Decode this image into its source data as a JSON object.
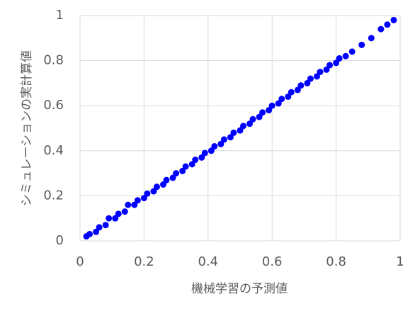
{
  "chart_data": {
    "type": "scatter",
    "xlabel": "機械学習の予測値",
    "ylabel": "シミュレーションの実計算値",
    "color": "#0000ff",
    "grid": true,
    "xlim": [
      0,
      1
    ],
    "ylim": [
      0,
      1
    ],
    "xticks": [
      0,
      0.2,
      0.4,
      0.6,
      0.8,
      1
    ],
    "yticks": [
      0,
      0.2,
      0.4,
      0.6,
      0.8,
      1
    ],
    "x": [
      0.02,
      0.03,
      0.05,
      0.06,
      0.08,
      0.09,
      0.11,
      0.12,
      0.14,
      0.15,
      0.17,
      0.18,
      0.2,
      0.21,
      0.23,
      0.24,
      0.26,
      0.27,
      0.29,
      0.3,
      0.32,
      0.33,
      0.35,
      0.36,
      0.38,
      0.39,
      0.41,
      0.42,
      0.44,
      0.45,
      0.47,
      0.48,
      0.5,
      0.51,
      0.53,
      0.54,
      0.56,
      0.57,
      0.59,
      0.6,
      0.62,
      0.63,
      0.65,
      0.66,
      0.68,
      0.69,
      0.71,
      0.72,
      0.74,
      0.75,
      0.77,
      0.78,
      0.8,
      0.81,
      0.83,
      0.85,
      0.88,
      0.91,
      0.94,
      0.96,
      0.98
    ],
    "y": [
      0.02,
      0.03,
      0.04,
      0.06,
      0.07,
      0.1,
      0.1,
      0.12,
      0.13,
      0.16,
      0.16,
      0.18,
      0.19,
      0.21,
      0.22,
      0.24,
      0.25,
      0.27,
      0.28,
      0.3,
      0.31,
      0.33,
      0.34,
      0.36,
      0.37,
      0.39,
      0.4,
      0.42,
      0.43,
      0.45,
      0.46,
      0.48,
      0.49,
      0.51,
      0.52,
      0.54,
      0.55,
      0.57,
      0.58,
      0.6,
      0.61,
      0.63,
      0.64,
      0.66,
      0.67,
      0.69,
      0.7,
      0.72,
      0.73,
      0.75,
      0.76,
      0.78,
      0.79,
      0.81,
      0.82,
      0.84,
      0.87,
      0.9,
      0.94,
      0.96,
      0.98
    ]
  }
}
